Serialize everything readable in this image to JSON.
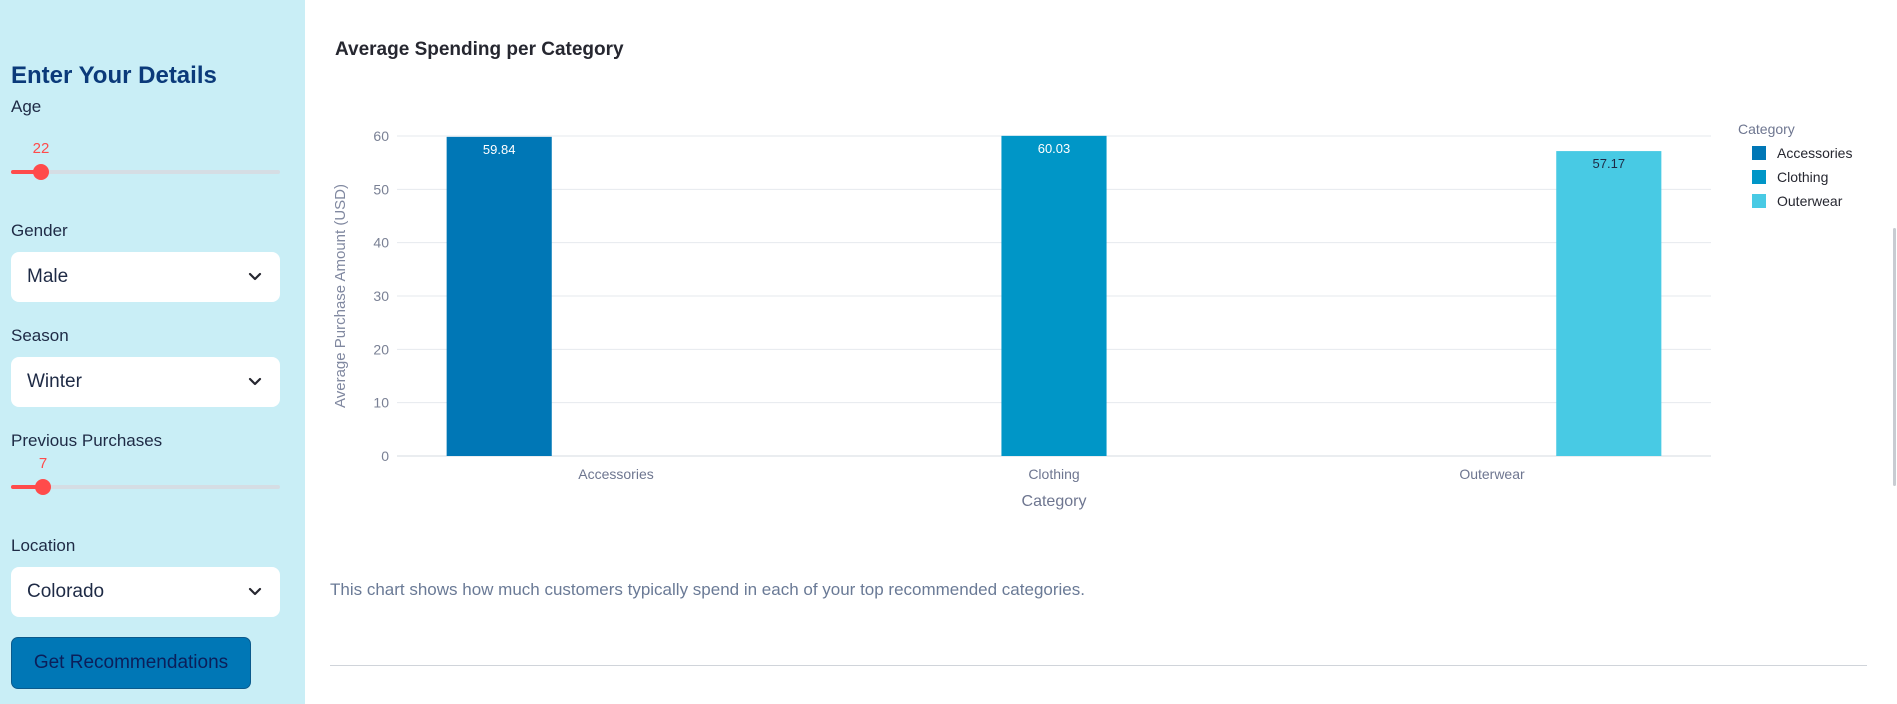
{
  "sidebar": {
    "title": "Enter Your Details",
    "age": {
      "label": "Age",
      "value": "22",
      "fraction": 0.11
    },
    "gender": {
      "label": "Gender",
      "value": "Male"
    },
    "season": {
      "label": "Season",
      "value": "Winter"
    },
    "previous_purchases": {
      "label": "Previous Purchases",
      "value": "7",
      "fraction": 0.12
    },
    "location": {
      "label": "Location",
      "value": "Colorado"
    },
    "button_label": "Get Recommendations"
  },
  "main": {
    "chart_title": "Average Spending per Category",
    "caption": "This chart shows how much customers typically spend in each of your top recommended categories."
  },
  "chart_data": {
    "type": "bar",
    "title": "Average Spending per Category",
    "xlabel": "Category",
    "ylabel": "Average Purchase Amount (USD)",
    "ylim": [
      0,
      60
    ],
    "yticks": [
      0,
      10,
      20,
      30,
      40,
      50,
      60
    ],
    "categories": [
      "Accessories",
      "Clothing",
      "Outerwear"
    ],
    "series": [
      {
        "name": "Accessories",
        "values": [
          59.84,
          null,
          null
        ],
        "color": "#0077b6"
      },
      {
        "name": "Clothing",
        "values": [
          null,
          60.03,
          null
        ],
        "color": "#0096c7"
      },
      {
        "name": "Outerwear",
        "values": [
          null,
          null,
          57.17
        ],
        "color": "#48cae4"
      }
    ],
    "data_labels": [
      "59.84",
      "60.03",
      "57.17"
    ],
    "legend": {
      "title": "Category",
      "placement": "right"
    },
    "grid": true
  },
  "colors": {
    "sidebar_bg": "#c9eef6",
    "accent": "#ff4b4b",
    "button": "#0077b6"
  }
}
